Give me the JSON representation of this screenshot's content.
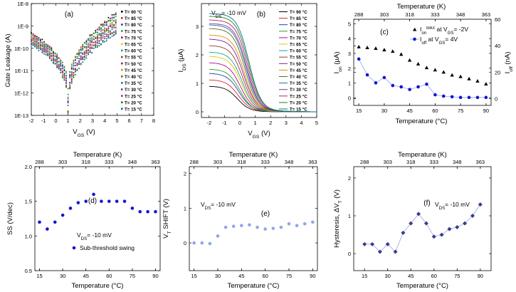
{
  "colors": {
    "blue": "#1414d2",
    "dark_blue": "#3a3a8c",
    "light_blue": "#90a6ea",
    "black": "#000000",
    "temps": [
      "#000000",
      "#d62728",
      "#1a3fb0",
      "#2ca02c",
      "#b10d8f",
      "#e6c500",
      "#14a0a0",
      "#9c3a18",
      "#7b1fa2",
      "#e68a00",
      "#5e6b1f",
      "#2b6ca0",
      "#6b3fa0",
      "#c41c6a",
      "#1f7f1f",
      "#0a6d8c"
    ]
  },
  "temps_legend": [
    "T= 90 °C",
    "T= 85 °C",
    "T= 80 °C",
    "T= 75 °C",
    "T= 70 °C",
    "T= 65 °C",
    "T= 60 °C",
    "T= 55 °C",
    "T= 50 °C",
    "T= 45 °C",
    "T= 40 °C",
    "T= 35 °C",
    "T= 30 °C",
    "T= 25 °C",
    "T= 20 °C",
    "T= 15 °C"
  ],
  "panels": {
    "a": {
      "label": "(a)",
      "ylabel": "Gate Leakage (A)",
      "xlabel": "V",
      "xlabel_sub": "GS",
      "xlabel_unit": " (V)"
    },
    "b": {
      "label": "(b)",
      "anno": "V",
      "anno_sub": "DS",
      "anno_rest": "= -10 mV",
      "ylabel": "I",
      "ylabel_sub": "DS",
      "ylabel_unit": " (µA)",
      "xlabel": "V",
      "xlabel_sub": "GS",
      "xlabel_unit": " (V)"
    },
    "c": {
      "label": "(c)",
      "top_title": "Temperature (K)",
      "xlabel": "Temperature (°C)",
      "ylabel_left": "I",
      "ylabel_left_sub": "on",
      "ylabel_left_unit": " (µA)",
      "ylabel_right": "I",
      "ylabel_right_sub": "off",
      "ylabel_right_unit": " (nA)",
      "legend1_pre": "I",
      "legend1_sub": "on",
      "legend1_sup": "MAX",
      "legend1_post": " at V",
      "legend1_post_sub": "GS",
      "legend1_tail": "= -2V",
      "legend2_pre": "I",
      "legend2_sub": "off",
      "legend2_post": " at V",
      "legend2_post_sub": "GS",
      "legend2_tail": "= 4V"
    },
    "d": {
      "label": "(d)",
      "top_title": "Temperature (K)",
      "xlabel": "Temperature (°C)",
      "ylabel": "SS (V/dec)",
      "anno": "V",
      "anno_sub": "DS",
      "anno_rest": "= -10 mV",
      "legend": "Sub-threshold swing"
    },
    "e": {
      "label": "(e)",
      "top_title": "Temperature (K)",
      "xlabel": "Temperature (°C)",
      "ylabel": "V",
      "ylabel_sub": "T",
      "ylabel_unit": " SHIFT (V)",
      "anno": "V",
      "anno_sub": "DS",
      "anno_rest": "= -10 mV"
    },
    "f": {
      "label": "(f)",
      "top_title": "Temperature (K)",
      "xlabel": "Temperature (°C)",
      "ylabel": "Hysteresis, ΔV",
      "ylabel_sub": "T",
      "ylabel_unit": " (V)",
      "anno": "V",
      "anno_sub": "DS",
      "anno_rest": "= -10 mV"
    }
  },
  "chart_data": [
    {
      "id": "a",
      "type": "scatter",
      "title": "(a)",
      "xlabel": "VGS (V)",
      "ylabel": "Gate Leakage (A)",
      "yscale": "log",
      "xlim": [
        -2,
        8
      ],
      "ylim": [
        1e-13,
        1e-08
      ],
      "xticks": [
        -2,
        -1,
        0,
        1,
        2,
        3,
        4,
        5,
        6,
        7,
        8
      ],
      "yticks": [
        1e-13,
        1e-12,
        1e-11,
        1e-10,
        1e-09,
        1e-08
      ],
      "ytick_labels": [
        "1E-13",
        "1E-12",
        "1E-11",
        "1E-10",
        "1E-9",
        "1E-8"
      ],
      "legend": [
        "T= 90 °C",
        "T= 85 °C",
        "T= 80 °C",
        "T= 75 °C",
        "T= 70 °C",
        "T= 65 °C",
        "T= 60 °C",
        "T= 55 °C",
        "T= 50 °C",
        "T= 45 °C",
        "T= 40 °C",
        "T= 35 °C",
        "T= 30 °C",
        "T= 25 °C",
        "T= 20 °C",
        "T= 15 °C"
      ],
      "series_shape": {
        "v_min": 1.0,
        "leak_at_minus2_range": [
          1.5e-10,
          5e-10
        ],
        "leak_at_5_range": [
          5e-10,
          4e-09
        ],
        "min_leak_range": [
          1e-13,
          2e-12
        ]
      }
    },
    {
      "id": "b",
      "type": "line",
      "title": "(b)",
      "xlabel": "VGS (V)",
      "ylabel": "IDS (µA)",
      "xlim": [
        -2.5,
        5
      ],
      "ylim": [
        -0.2,
        3.8
      ],
      "xticks": [
        -2,
        -1,
        0,
        1,
        2,
        3,
        4,
        5
      ],
      "yticks": [
        0,
        1,
        2,
        3
      ],
      "legend": [
        "T= 90 °C",
        "T= 85 °C",
        "T= 80 °C",
        "T= 75 °C",
        "T= 70 °C",
        "T= 65 °C",
        "T= 60 °C",
        "T= 55 °C",
        "T= 50 °C",
        "T= 45 °C",
        "T= 40 °C",
        "T= 35 °C",
        "T= 30 °C",
        "T= 25 °C",
        "T= 20 °C",
        "T= 15 °C"
      ],
      "ids_at_minus2": [
        0.9,
        1.1,
        1.3,
        1.5,
        1.7,
        1.9,
        2.1,
        2.3,
        2.5,
        2.7,
        2.9,
        3.0,
        3.1,
        3.2,
        3.3,
        3.45
      ],
      "vth": [
        -0.2,
        -0.15,
        -0.1,
        -0.05,
        0.0,
        0.05,
        0.1,
        0.15,
        0.2,
        0.25,
        0.3,
        0.35,
        0.4,
        0.45,
        0.5,
        0.55
      ]
    },
    {
      "id": "c",
      "type": "line",
      "xlabel": "Temperature (°C)",
      "ylabel": "Ion (µA)",
      "y2label": "Ioff (nA)",
      "x2label": "Temperature (K)",
      "xlim": [
        12,
        93
      ],
      "ylim": [
        -0.5,
        5.3
      ],
      "y2lim": [
        -5,
        60
      ],
      "xticks": [
        15,
        30,
        45,
        60,
        75,
        90
      ],
      "x2ticks": [
        288,
        303,
        318,
        333,
        348,
        363
      ],
      "yticks": [
        0,
        1,
        2,
        3,
        4,
        5
      ],
      "y2ticks": [
        0,
        20,
        40,
        60
      ],
      "series": [
        {
          "name": "Ion MAX at VGS= -2V",
          "axis": "left",
          "x": [
            15,
            20,
            25,
            30,
            35,
            40,
            45,
            50,
            55,
            60,
            65,
            70,
            75,
            80,
            85,
            90
          ],
          "values": [
            3.45,
            3.4,
            3.35,
            3.25,
            3.15,
            2.95,
            2.55,
            2.3,
            2.05,
            1.9,
            1.75,
            1.55,
            1.45,
            1.3,
            1.15,
            0.95
          ]
        },
        {
          "name": "Ioff at VGS= 4V",
          "axis": "right",
          "x": [
            15,
            20,
            25,
            30,
            35,
            40,
            45,
            50,
            55,
            60,
            65,
            70,
            75,
            80,
            85,
            90
          ],
          "values": [
            30,
            18,
            12,
            16,
            10,
            9,
            7,
            9,
            11,
            3,
            2,
            1.5,
            1,
            1,
            1,
            1
          ]
        }
      ]
    },
    {
      "id": "d",
      "type": "scatter",
      "title": "(d)",
      "xlabel": "Temperature (°C)",
      "ylabel": "SS (V/dec)",
      "x2label": "Temperature (K)",
      "xlim": [
        12,
        93
      ],
      "ylim": [
        0.5,
        2.0
      ],
      "xticks": [
        15,
        30,
        45,
        60,
        75,
        90
      ],
      "x2ticks": [
        288,
        303,
        318,
        333,
        348,
        363
      ],
      "yticks": [
        0.5,
        1.0,
        1.5,
        2.0
      ],
      "ytick_labels": [
        "0.5",
        "1.0",
        "1.5",
        "2.0"
      ],
      "series": [
        {
          "name": "Sub-threshold swing",
          "x": [
            15,
            20,
            25,
            30,
            35,
            40,
            45,
            50,
            55,
            60,
            65,
            70,
            75,
            80,
            85,
            90
          ],
          "values": [
            1.2,
            1.1,
            1.2,
            1.3,
            1.4,
            1.48,
            1.5,
            1.6,
            1.5,
            1.5,
            1.5,
            1.5,
            1.4,
            1.35,
            1.35,
            1.35
          ]
        }
      ]
    },
    {
      "id": "e",
      "type": "scatter",
      "title": "(e)",
      "xlabel": "Temperature (°C)",
      "ylabel": "VT SHIFT (V)",
      "x2label": "Temperature (K)",
      "xlim": [
        12,
        93
      ],
      "ylim": [
        -0.8,
        2.2
      ],
      "xticks": [
        15,
        30,
        45,
        60,
        75,
        90
      ],
      "x2ticks": [
        288,
        303,
        318,
        333,
        348,
        363
      ],
      "yticks": [
        0,
        1,
        2
      ],
      "series": [
        {
          "name": "VT shift",
          "x": [
            15,
            20,
            25,
            30,
            35,
            40,
            45,
            50,
            55,
            60,
            65,
            70,
            75,
            80,
            85,
            90
          ],
          "values": [
            0.0,
            0.0,
            -0.02,
            0.2,
            0.45,
            0.48,
            0.5,
            0.52,
            0.45,
            0.4,
            0.42,
            0.45,
            0.55,
            0.5,
            0.55,
            0.6
          ]
        }
      ]
    },
    {
      "id": "f",
      "type": "line",
      "title": "(f)",
      "xlabel": "Temperature (°C)",
      "ylabel": "Hysteresis, ΔVT (V)",
      "x2label": "Temperature (K)",
      "xlim": [
        8,
        97
      ],
      "ylim": [
        -0.45,
        2.3
      ],
      "xticks": [
        15,
        30,
        45,
        60,
        75,
        90
      ],
      "x2ticks": [
        288,
        303,
        318,
        333,
        348,
        363
      ],
      "yticks": [
        0,
        1,
        2
      ],
      "series": [
        {
          "name": "Hysteresis",
          "x": [
            15,
            20,
            25,
            30,
            35,
            40,
            45,
            50,
            55,
            60,
            65,
            70,
            75,
            80,
            85,
            90
          ],
          "values": [
            0.25,
            0.25,
            0.05,
            0.25,
            0.05,
            0.55,
            0.8,
            1.05,
            0.8,
            0.45,
            0.5,
            0.65,
            0.7,
            0.8,
            1.0,
            1.3
          ]
        }
      ]
    }
  ]
}
